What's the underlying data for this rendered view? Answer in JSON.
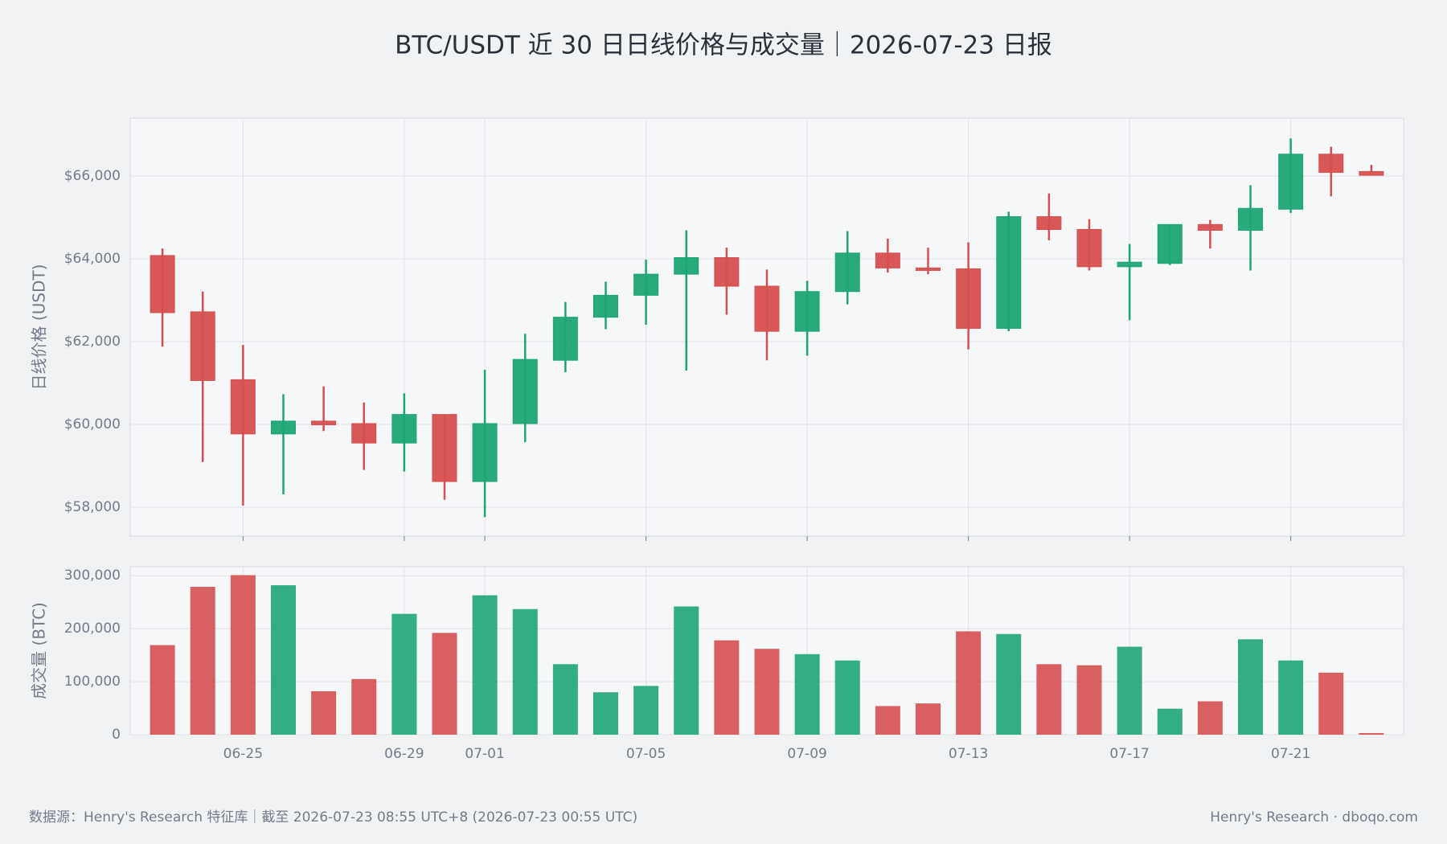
{
  "chart_data": [
    {
      "type": "candlestick",
      "title": "BTC/USDT 近 30 日日线价格与成交量｜2026-07-23 日报",
      "y_label": "日线价格 (USDT)",
      "categories": [
        null,
        null,
        "06-25",
        null,
        null,
        null,
        "06-29",
        null,
        "07-01",
        null,
        null,
        null,
        "07-05",
        null,
        null,
        null,
        "07-09",
        null,
        null,
        null,
        "07-13",
        null,
        null,
        null,
        "07-17",
        null,
        null,
        null,
        "07-21",
        null,
        null
      ],
      "open": [
        64080,
        62720,
        61080,
        59770,
        60080,
        60020,
        59550,
        60240,
        58620,
        60020,
        61550,
        62590,
        63120,
        63630,
        64030,
        63340,
        62250,
        63210,
        64140,
        63780,
        63760,
        62320,
        65020,
        64710,
        63810,
        63890,
        64830,
        64690,
        65200,
        66530,
        66110
      ],
      "high": [
        64250,
        63210,
        61920,
        60730,
        60920,
        60530,
        60750,
        60240,
        61320,
        62190,
        62960,
        63450,
        63980,
        64690,
        64270,
        63740,
        63470,
        64670,
        64490,
        64270,
        64400,
        65140,
        65580,
        64960,
        64360,
        64830,
        64940,
        65780,
        66910,
        66710,
        66270
      ],
      "low": [
        61880,
        59090,
        58040,
        58310,
        59840,
        58900,
        58860,
        58180,
        57760,
        59570,
        61260,
        62300,
        62410,
        61300,
        62650,
        61550,
        61660,
        62900,
        63670,
        63630,
        61810,
        62250,
        64450,
        63720,
        62520,
        63850,
        64250,
        63720,
        65110,
        65510,
        66020
      ],
      "close": [
        62700,
        61060,
        59770,
        60080,
        59990,
        59550,
        60240,
        58620,
        60020,
        61570,
        62590,
        63120,
        63630,
        64030,
        63340,
        62250,
        63210,
        64140,
        63780,
        63720,
        62320,
        65020,
        64710,
        63810,
        63920,
        64830,
        64690,
        65220,
        66530,
        66090,
        66020
      ],
      "up_color": "#1ea574",
      "down_color": "#d64f4f",
      "ylim": [
        57300,
        67400
      ],
      "yticks": [
        {
          "value": 58000,
          "label": "$58,000"
        },
        {
          "value": 60000,
          "label": "$60,000"
        },
        {
          "value": 62000,
          "label": "$62,000"
        },
        {
          "value": 64000,
          "label": "$64,000"
        },
        {
          "value": 66000,
          "label": "$66,000"
        }
      ],
      "grid": true
    },
    {
      "type": "bar",
      "y_label": "成交量 (BTC)",
      "values": [
        169000,
        279000,
        301000,
        282000,
        82000,
        105000,
        228000,
        192000,
        263000,
        237000,
        133000,
        80000,
        92000,
        242000,
        178000,
        162000,
        152000,
        140000,
        54000,
        59000,
        195000,
        190000,
        133000,
        131000,
        166000,
        49000,
        63000,
        180000,
        140000,
        117000,
        3000
      ],
      "opacity": 0.9,
      "ylim": [
        0,
        317000
      ],
      "yticks": [
        0,
        {
          "value": 100000,
          "label": "100,000"
        },
        {
          "value": 200000,
          "label": "200,000"
        },
        {
          "value": 300000,
          "label": "300,000"
        }
      ],
      "grid": true
    }
  ],
  "footer": {
    "source": "数据源：Henry's Research 特征库｜截至 2026-07-23 08:55 UTC+8 (2026-07-23 00:55 UTC)",
    "credit": "Henry's Research · dboqo.com"
  }
}
